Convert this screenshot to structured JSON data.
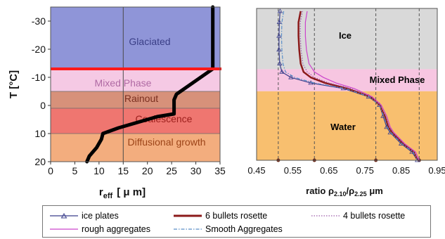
{
  "chart_data": [
    {
      "type": "line",
      "title": "",
      "xlabel": "r",
      "xlabel_sub": "eff",
      "xlabel_units": "[ μ m]",
      "ylabel": "T [°C]",
      "xlim": [
        0,
        35
      ],
      "ylim": [
        20,
        -35
      ],
      "xticks": [
        0,
        5,
        10,
        15,
        20,
        25,
        30,
        35
      ],
      "yticks": [
        -30,
        -20,
        -10,
        0,
        10,
        20
      ],
      "xtick_labels": [
        "0",
        "5",
        "10",
        "15",
        "20",
        "25",
        "30",
        "35"
      ],
      "ytick_labels": [
        "-30",
        "-20",
        "-10",
        "0",
        "10",
        "20"
      ],
      "bands": [
        {
          "label": "Glaciated",
          "y0": -35,
          "y1": -13,
          "color": "#8f95d8",
          "label_color": "#3a3e86"
        },
        {
          "label": "Mixed Phase",
          "y0": -13,
          "y1": -5,
          "color": "#f5c9e4",
          "label_color": "#b06aa4"
        },
        {
          "label": "Rainout",
          "y0": -5,
          "y1": 1,
          "color": "#d7917a",
          "label_color": "#7a3020"
        },
        {
          "label": "Coalescence",
          "y0": 1,
          "y1": 10,
          "color": "#ef7670",
          "label_color": "#9c1f1c"
        },
        {
          "label": "Diffusional growth",
          "y0": 10,
          "y1": 20,
          "color": "#f3ad7e",
          "label_color": "#9c4418"
        }
      ],
      "vertical_line_x": 15,
      "red_line_y": -13,
      "series": [
        {
          "x": [
            7.5,
            8,
            9.5,
            10.5,
            10.8,
            14,
            18,
            22,
            25.5,
            25.5,
            26,
            33.5,
            33.5
          ],
          "y": [
            20,
            18,
            15,
            12,
            10,
            8,
            6,
            4,
            3,
            -2,
            -4,
            -13,
            -35
          ]
        }
      ],
      "colors": {
        "series": "#000000",
        "red_line": "#ff1a1a",
        "vline": "#4a4a4a"
      }
    },
    {
      "type": "line",
      "title": "",
      "xlabel": "ratio ρ",
      "xlabel_sub1": "2.10",
      "xlabel_mid": "/ρ",
      "xlabel_sub2": "2.25",
      "xlabel_units": " μm",
      "xlim": [
        0.45,
        0.95
      ],
      "ylim": [
        20,
        -35
      ],
      "xticks": [
        0.45,
        0.55,
        0.65,
        0.75,
        0.85,
        0.95
      ],
      "xtick_labels": [
        "0.45",
        "0.55",
        "0.65",
        "0.75",
        "0.85",
        "0.95"
      ],
      "bands": [
        {
          "label": "Ice",
          "y0": -35,
          "y1": -13,
          "color": "#d9d9d9"
        },
        {
          "label": "Mixed Phase",
          "y0": -13,
          "y1": -5,
          "color": "#f7c6e1"
        },
        {
          "label": "Water",
          "y0": -5,
          "y1": 20,
          "color": "#f8bf6f"
        }
      ],
      "dashed_x": [
        0.51,
        0.61,
        0.78,
        0.9
      ],
      "series": [
        {
          "name": "ice plates",
          "color": "#3b3f8c",
          "style": "triangle-markers",
          "x": [
            0.515,
            0.513,
            0.512,
            0.512,
            0.514,
            0.52,
            0.545,
            0.6,
            0.69,
            0.76,
            0.79,
            0.8,
            0.81,
            0.82,
            0.85,
            0.88,
            0.895
          ],
          "y": [
            -34,
            -30,
            -25,
            -20,
            -15,
            -12,
            -10,
            -8,
            -6,
            -3,
            0,
            4,
            8,
            10,
            14,
            17,
            20
          ]
        },
        {
          "name": "6 bullets rosette",
          "color": "#8b1a1a",
          "style": "thick",
          "x": [
            0.572,
            0.566,
            0.566,
            0.568,
            0.572,
            0.58,
            0.6,
            0.64,
            0.7,
            0.765,
            0.79,
            0.805,
            0.815,
            0.825,
            0.855,
            0.885,
            0.895
          ],
          "y": [
            -34,
            -30,
            -25,
            -20,
            -15,
            -12,
            -10,
            -8,
            -6,
            -3,
            0,
            4,
            8,
            10,
            14,
            17,
            20
          ]
        },
        {
          "name": "4 bullets rosette",
          "color": "#9b5aa8",
          "style": "dotted",
          "x": [
            0.577,
            0.571,
            0.571,
            0.573,
            0.578,
            0.59,
            0.61,
            0.65,
            0.71,
            0.768,
            0.792,
            0.807,
            0.817,
            0.828,
            0.858,
            0.887,
            0.897
          ],
          "y": [
            -34,
            -30,
            -25,
            -20,
            -15,
            -12,
            -10,
            -8,
            -6,
            -3,
            0,
            4,
            8,
            10,
            14,
            17,
            20
          ]
        },
        {
          "name": "rough aggregates",
          "color": "#cc44cc",
          "style": "solid",
          "x": [
            0.59,
            0.585,
            0.585,
            0.588,
            0.595,
            0.61,
            0.635,
            0.67,
            0.72,
            0.77,
            0.795,
            0.81,
            0.82,
            0.83,
            0.86,
            0.89,
            0.9
          ],
          "y": [
            -34,
            -30,
            -25,
            -20,
            -15,
            -12,
            -10,
            -8,
            -6,
            -3,
            0,
            4,
            8,
            10,
            14,
            17,
            20
          ]
        },
        {
          "name": "Smooth Aggregates",
          "color": "#5a8fc8",
          "style": "dashdot",
          "x": [
            0.525,
            0.52,
            0.519,
            0.52,
            0.523,
            0.53,
            0.556,
            0.61,
            0.695,
            0.762,
            0.789,
            0.802,
            0.812,
            0.822,
            0.852,
            0.883,
            0.894
          ],
          "y": [
            -34,
            -30,
            -25,
            -20,
            -15,
            -12,
            -10,
            -8,
            -6,
            -3,
            0,
            4,
            8,
            10,
            14,
            17,
            20
          ]
        }
      ]
    }
  ],
  "legend": [
    {
      "label": "ice plates",
      "color": "#3b3f8c",
      "style": "triangle-markers"
    },
    {
      "label": "6 bullets rosette",
      "color": "#8b1a1a",
      "style": "thick"
    },
    {
      "label": "4 bullets rosette",
      "color": "#9b5aa8",
      "style": "dotted"
    },
    {
      "label": "rough aggregates",
      "color": "#cc44cc",
      "style": "solid"
    },
    {
      "label": "Smooth Aggregates",
      "color": "#5a8fc8",
      "style": "dashdot"
    }
  ]
}
